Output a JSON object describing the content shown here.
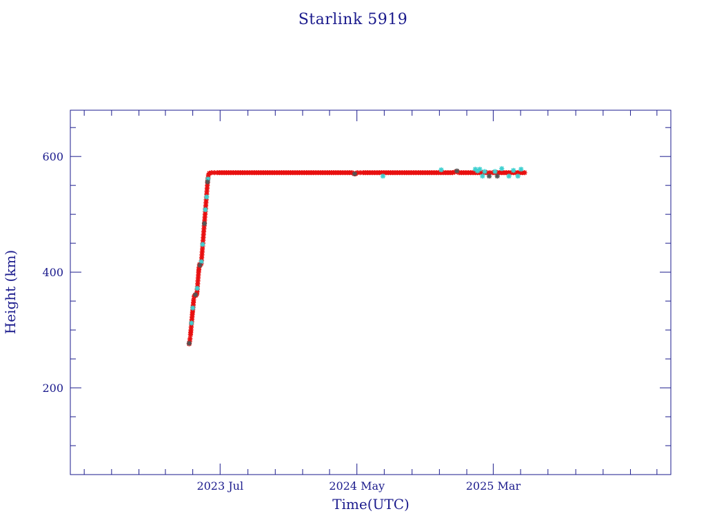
{
  "chart_data": {
    "type": "scatter",
    "title": "Starlink 5919",
    "xlabel": "Time(UTC)",
    "ylabel": "Height (km)",
    "x_unit": "date",
    "xlim": [
      "2022-08-01",
      "2026-04-01"
    ],
    "ylim": [
      50,
      680
    ],
    "x_ticks": [
      {
        "date": "2023-07-01",
        "label": "2023 Jul"
      },
      {
        "date": "2024-05-01",
        "label": "2024 May"
      },
      {
        "date": "2025-03-01",
        "label": "2025 Mar"
      }
    ],
    "y_ticks": [
      200,
      400,
      600
    ],
    "grid": false,
    "colors": {
      "axis": "#1a1a8c",
      "primary_series": "#e81010",
      "secondary_series": "#40d0d0",
      "dark_marker": "#555555"
    },
    "series": [
      {
        "color": "#e81010",
        "marker": "star",
        "points": [
          [
            "2023-04-23",
            276
          ],
          [
            "2023-04-24",
            280
          ],
          [
            "2023-04-25",
            285
          ],
          [
            "2023-04-26",
            292
          ],
          [
            "2023-04-27",
            300
          ],
          [
            "2023-04-28",
            310
          ],
          [
            "2023-04-29",
            318
          ],
          [
            "2023-04-30",
            327
          ],
          [
            "2023-05-01",
            335
          ],
          [
            "2023-05-02",
            343
          ],
          [
            "2023-05-03",
            352
          ],
          [
            "2023-05-04",
            358
          ],
          [
            "2023-05-06",
            360
          ],
          [
            "2023-05-08",
            360
          ],
          [
            "2023-05-10",
            362
          ],
          [
            "2023-05-11",
            370
          ],
          [
            "2023-05-12",
            380
          ],
          [
            "2023-05-13",
            390
          ],
          [
            "2023-05-14",
            400
          ],
          [
            "2023-05-15",
            408
          ],
          [
            "2023-05-16",
            413
          ],
          [
            "2023-05-18",
            413
          ],
          [
            "2023-05-20",
            415
          ],
          [
            "2023-05-21",
            425
          ],
          [
            "2023-05-22",
            435
          ],
          [
            "2023-05-23",
            445
          ],
          [
            "2023-05-24",
            455
          ],
          [
            "2023-05-25",
            465
          ],
          [
            "2023-05-26",
            475
          ],
          [
            "2023-05-27",
            485
          ],
          [
            "2023-05-28",
            495
          ],
          [
            "2023-05-29",
            505
          ],
          [
            "2023-05-30",
            515
          ],
          [
            "2023-05-31",
            525
          ],
          [
            "2023-06-01",
            535
          ],
          [
            "2023-06-02",
            545
          ],
          [
            "2023-06-03",
            555
          ],
          [
            "2023-06-04",
            563
          ],
          [
            "2023-06-05",
            568
          ],
          [
            "2023-06-07",
            571
          ],
          [
            "2023-06-12",
            572
          ],
          [
            "2023-06-25",
            572
          ],
          [
            "2023-07-10",
            572
          ],
          [
            "2023-07-25",
            572
          ],
          [
            "2023-08-10",
            572
          ],
          [
            "2023-08-25",
            572
          ],
          [
            "2023-09-10",
            572
          ],
          [
            "2023-09-25",
            572
          ],
          [
            "2023-10-10",
            572
          ],
          [
            "2023-10-25",
            572
          ],
          [
            "2023-11-10",
            572
          ],
          [
            "2023-11-25",
            572
          ],
          [
            "2023-12-10",
            572
          ],
          [
            "2023-12-25",
            572
          ],
          [
            "2024-01-10",
            572
          ],
          [
            "2024-01-25",
            572
          ],
          [
            "2024-02-10",
            572
          ],
          [
            "2024-02-25",
            572
          ],
          [
            "2024-03-10",
            572
          ],
          [
            "2024-03-25",
            572
          ],
          [
            "2024-04-10",
            572
          ],
          [
            "2024-04-20",
            572
          ],
          [
            "2024-04-25",
            570
          ],
          [
            "2024-04-28",
            570
          ],
          [
            "2024-05-02",
            572
          ],
          [
            "2024-05-15",
            572
          ],
          [
            "2024-05-30",
            572
          ],
          [
            "2024-06-15",
            572
          ],
          [
            "2024-06-30",
            572
          ],
          [
            "2024-07-15",
            572
          ],
          [
            "2024-07-30",
            572
          ],
          [
            "2024-08-15",
            572
          ],
          [
            "2024-08-30",
            572
          ],
          [
            "2024-09-15",
            572
          ],
          [
            "2024-09-30",
            572
          ],
          [
            "2024-10-15",
            572
          ],
          [
            "2024-10-30",
            572
          ],
          [
            "2024-11-15",
            572
          ],
          [
            "2024-11-30",
            572
          ],
          [
            "2024-12-10",
            574
          ],
          [
            "2024-12-15",
            572
          ],
          [
            "2024-12-30",
            572
          ],
          [
            "2025-01-15",
            572
          ],
          [
            "2025-01-30",
            572
          ],
          [
            "2025-02-15",
            572
          ],
          [
            "2025-02-28",
            572
          ],
          [
            "2025-03-15",
            572
          ],
          [
            "2025-03-30",
            572
          ],
          [
            "2025-04-15",
            572
          ],
          [
            "2025-04-30",
            572
          ],
          [
            "2025-05-10",
            572
          ]
        ]
      },
      {
        "color": "#40d0d0",
        "marker": "star",
        "points": [
          [
            "2023-04-28",
            312
          ],
          [
            "2023-05-01",
            338
          ],
          [
            "2023-05-11",
            372
          ],
          [
            "2023-05-20",
            418
          ],
          [
            "2023-05-23",
            448
          ],
          [
            "2023-05-29",
            508
          ],
          [
            "2023-06-01",
            530
          ],
          [
            "2023-06-04",
            561
          ],
          [
            "2024-06-28",
            566
          ],
          [
            "2024-11-05",
            577
          ],
          [
            "2025-01-20",
            578
          ],
          [
            "2025-01-25",
            575
          ],
          [
            "2025-01-30",
            578
          ],
          [
            "2025-02-05",
            566
          ],
          [
            "2025-02-10",
            574
          ],
          [
            "2025-03-05",
            574
          ],
          [
            "2025-03-20",
            579
          ],
          [
            "2025-04-05",
            566
          ],
          [
            "2025-04-15",
            576
          ],
          [
            "2025-04-25",
            566
          ],
          [
            "2025-05-02",
            578
          ]
        ]
      },
      {
        "color": "#555555",
        "marker": "star",
        "points": [
          [
            "2023-04-23",
            277
          ],
          [
            "2023-05-07",
            361
          ],
          [
            "2023-05-17",
            412
          ],
          [
            "2023-05-27",
            484
          ],
          [
            "2023-06-03",
            556
          ],
          [
            "2024-04-26",
            570
          ],
          [
            "2024-12-10",
            575
          ],
          [
            "2025-02-20",
            566
          ],
          [
            "2025-03-10",
            566
          ]
        ]
      }
    ]
  }
}
